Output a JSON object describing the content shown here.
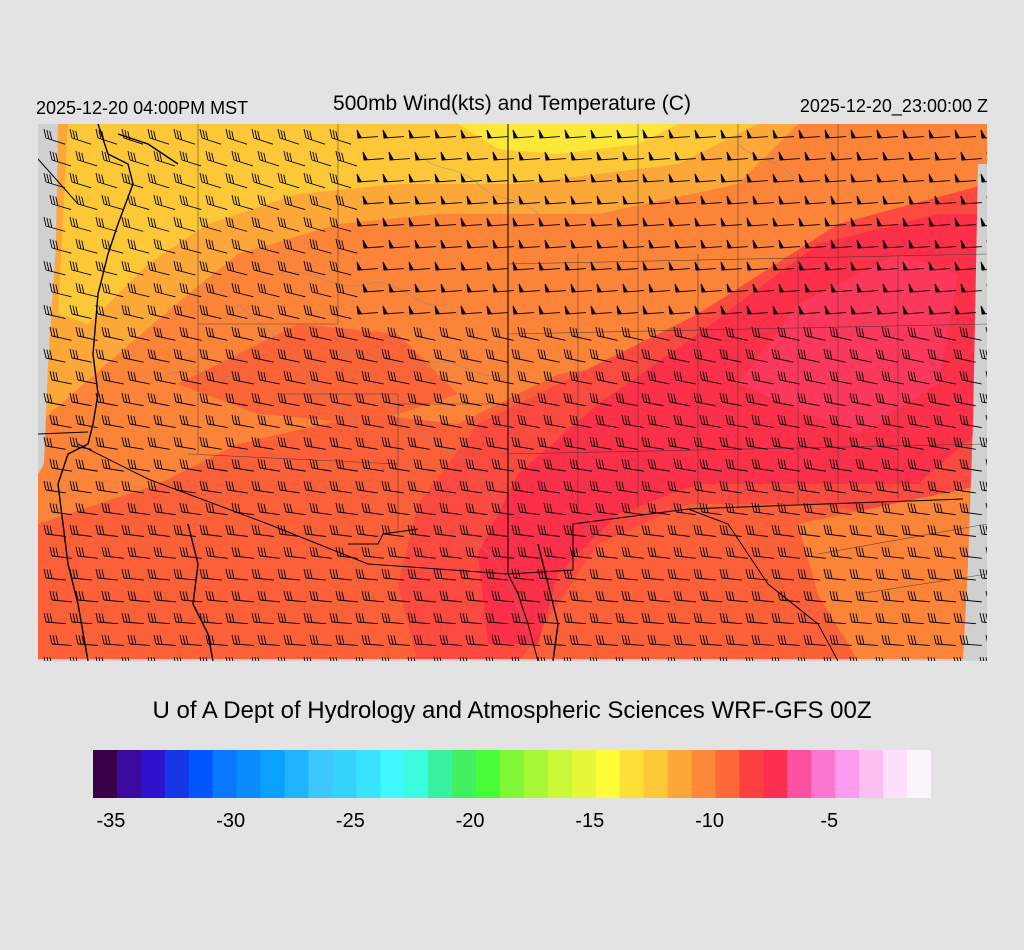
{
  "header": {
    "local_time": "2025-12-20 04:00PM MST",
    "title": "500mb Wind(kts) and Temperature (C)",
    "utc_time": "2025-12-20_23:00:00 Z"
  },
  "credit": "U of A Dept of Hydrology and Atmospheric Sciences WRF-GFS 00Z",
  "legend": {
    "colors": [
      "#3a0045",
      "#3d0aa0",
      "#2f13cc",
      "#1636e8",
      "#0057ff",
      "#0a78ff",
      "#0a8cff",
      "#0aa0ff",
      "#20b4ff",
      "#3cc8ff",
      "#34d4ff",
      "#38e4ff",
      "#40f8ff",
      "#3cfce0",
      "#38f0a0",
      "#40f060",
      "#48fc38",
      "#80f838",
      "#a8f838",
      "#c8f838",
      "#e4f838",
      "#fcfc38",
      "#fce038",
      "#fcc838",
      "#fca838",
      "#fc8838",
      "#fc6838",
      "#fc4040",
      "#fc2f50",
      "#fc50a0",
      "#fc78d0",
      "#fc9cf0",
      "#fcc0f0",
      "#fce0fc",
      "#fcf4fc"
    ],
    "ticks": [
      {
        "label": "-35",
        "index": 0
      },
      {
        "label": "-30",
        "index": 5
      },
      {
        "label": "-25",
        "index": 10
      },
      {
        "label": "-20",
        "index": 15
      },
      {
        "label": "-15",
        "index": 20
      },
      {
        "label": "-10",
        "index": 25
      },
      {
        "label": "-5",
        "index": 30
      }
    ]
  },
  "map": {
    "colors": {
      "ocean": "#d0d0d0",
      "warm_red": "#fc3048",
      "red": "#fc4a40",
      "orange_red": "#fc6038",
      "orange": "#fc8438",
      "light_orange": "#fca838",
      "yellow_orange": "#fcc838",
      "yellow": "#fce838",
      "pink": "#fc4070",
      "border": "#000000",
      "terrain_contour": "#888888"
    }
  }
}
